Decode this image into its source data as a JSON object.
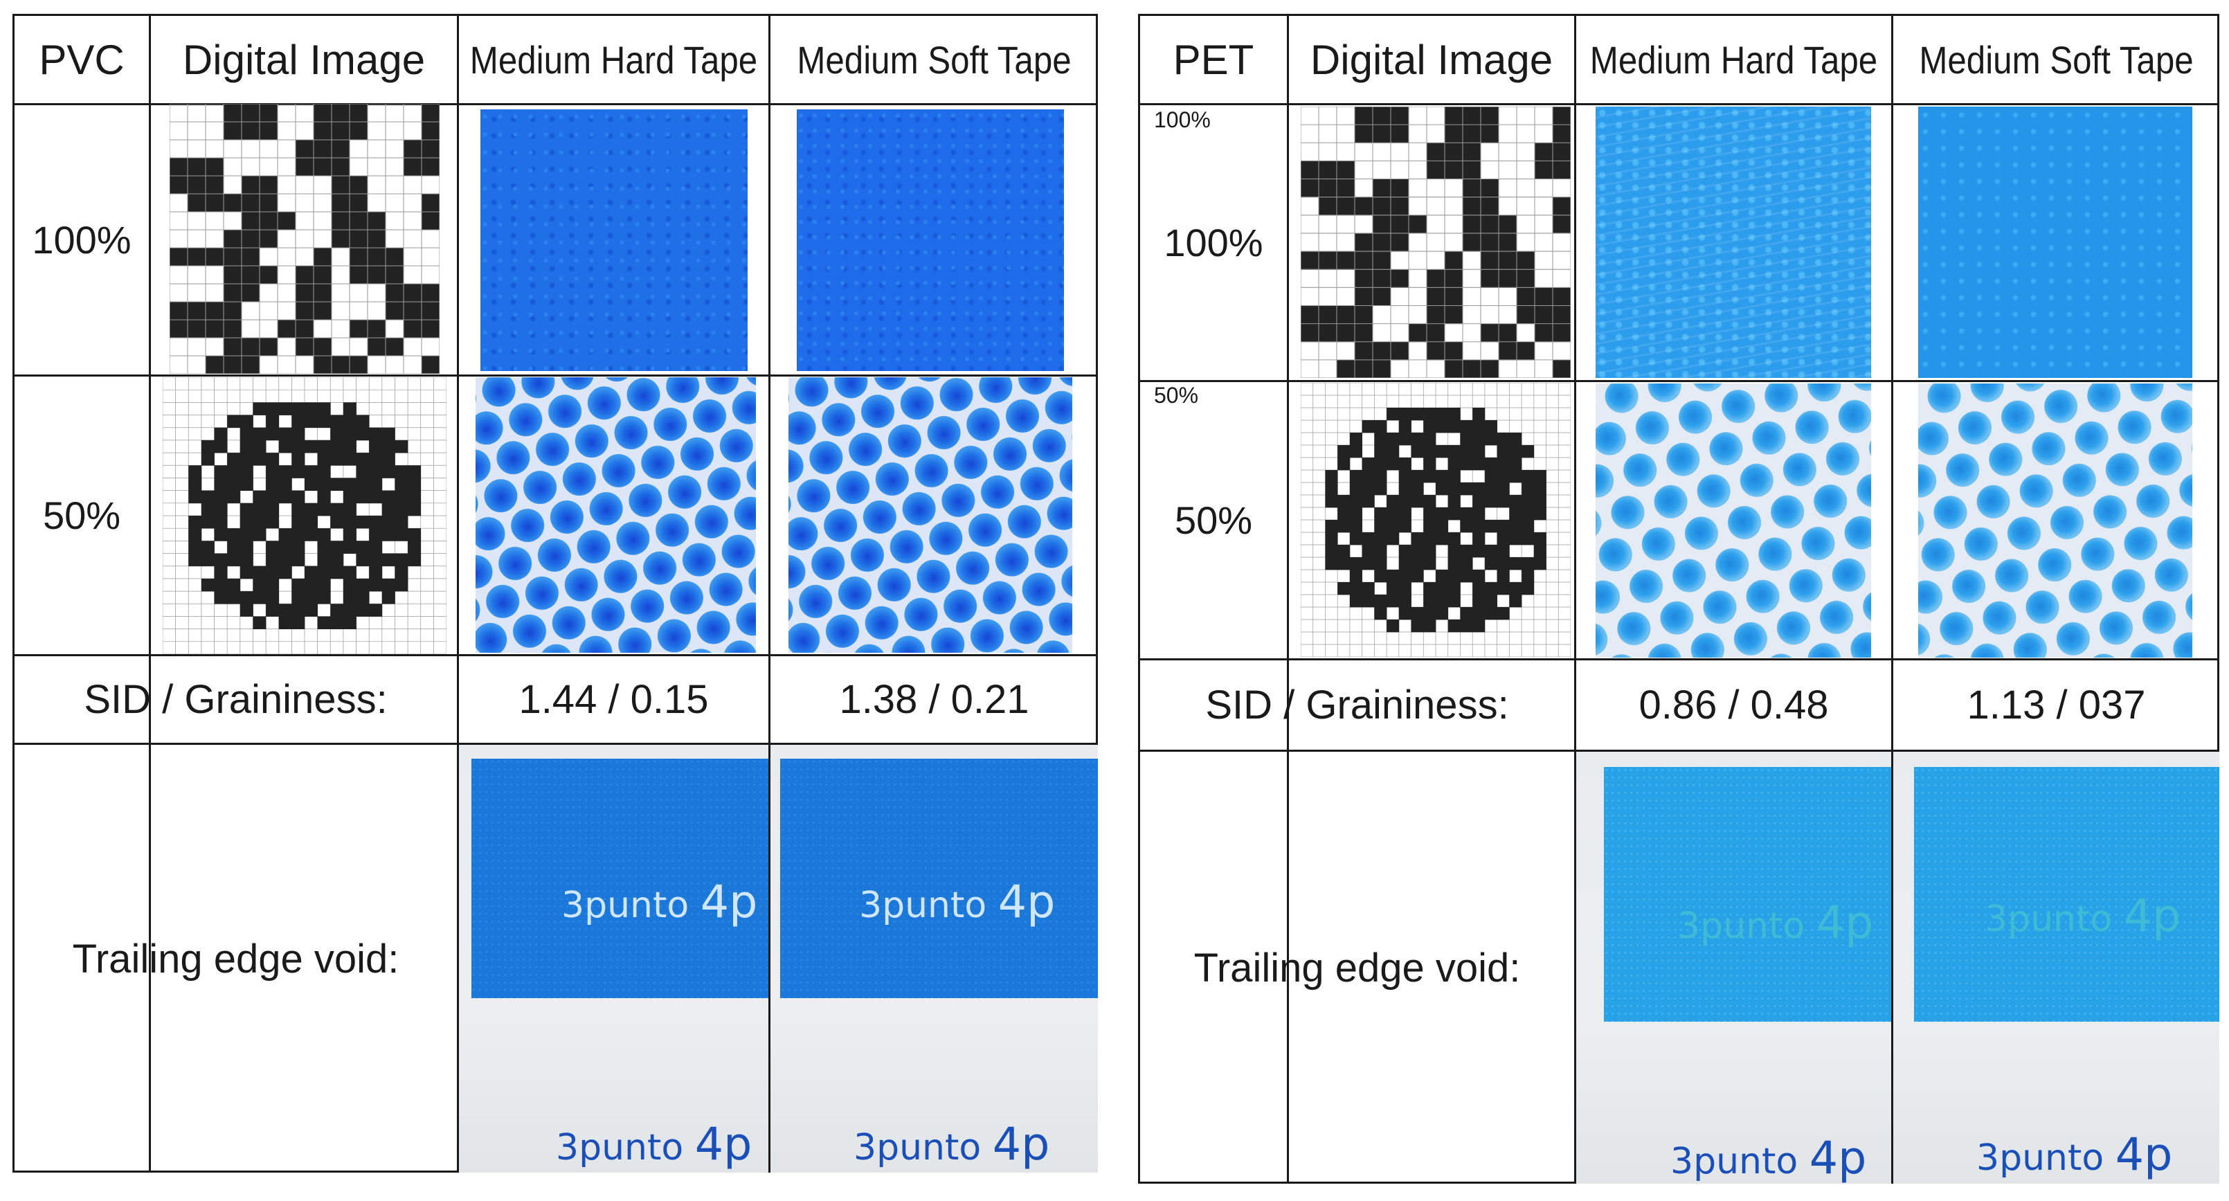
{
  "panels": [
    {
      "material": "PVC",
      "header": {
        "col_digital": "Digital Image",
        "col_hard": "Medium Hard Tape",
        "col_soft": "Medium Soft Tape"
      },
      "rows": [
        {
          "label": "100%",
          "corner_label": ""
        },
        {
          "label": "50%",
          "corner_label": ""
        }
      ],
      "sid": {
        "label": "SID / Graininess:",
        "hard": "1.44 / 0.15",
        "soft": "1.38 / 0.21"
      },
      "trailing": {
        "label": "Trailing edge void:",
        "brand_text": "3punto",
        "brand_suffix": "4p"
      }
    },
    {
      "material": "PET",
      "header": {
        "col_digital": "Digital Image",
        "col_hard": "Medium Hard Tape",
        "col_soft": "Medium Soft Tape"
      },
      "rows": [
        {
          "label": "100%",
          "corner_label": "100%"
        },
        {
          "label": "50%",
          "corner_label": "50%"
        }
      ],
      "sid": {
        "label": "SID / Graininess:",
        "hard": "0.86 / 0.48",
        "soft": "1.13 / 037"
      },
      "trailing": {
        "label": "Trailing edge void:",
        "brand_text": "3punto",
        "brand_suffix": "4p"
      }
    }
  ],
  "colors": {
    "solid_blue": "#1f6fe6",
    "screen_blue": "#2a7de8",
    "pvc_photo_blue": "#1b78d8",
    "pet_photo_blue": "#27a2e6",
    "brand_text_blue": "#1a4fb8"
  }
}
